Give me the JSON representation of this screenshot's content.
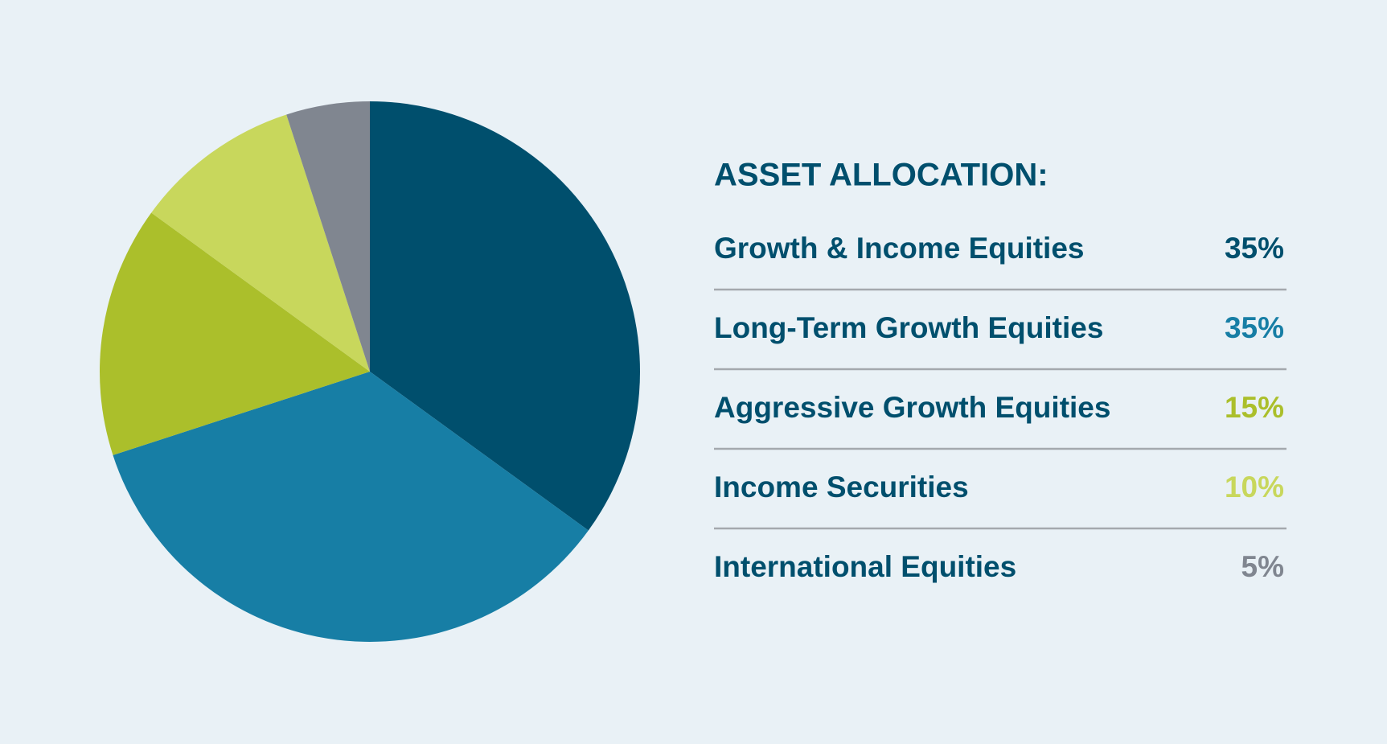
{
  "chart_data": {
    "type": "pie",
    "title": "ASSET ALLOCATION:",
    "categories": [
      "Growth & Income Equities",
      "Long-Term Growth Equities",
      "Aggressive Growth Equities",
      "Income Securities",
      "International Equities"
    ],
    "values": [
      35,
      35,
      15,
      10,
      5
    ],
    "value_labels": [
      "35%",
      "35%",
      "15%",
      "10%",
      "5%"
    ],
    "colors": [
      "#004f6d",
      "#177ea5",
      "#abbf2b",
      "#c8d75c",
      "#808690"
    ]
  }
}
